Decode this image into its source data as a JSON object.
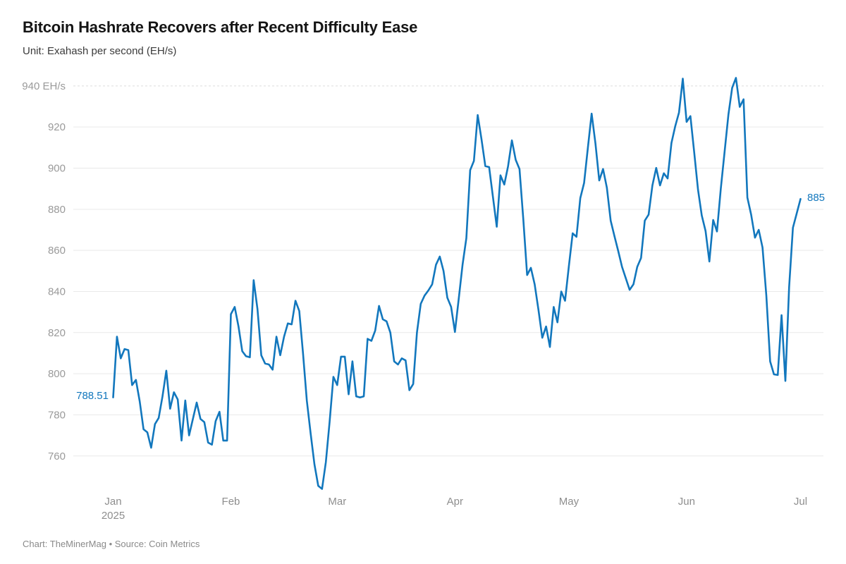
{
  "header": {
    "title": "Bitcoin Hashrate Recovers after Recent Difficulty Ease",
    "subtitle": "Unit: Exahash per second (EH/s)"
  },
  "footer": {
    "credit": "Chart: TheMinerMag • Source: Coin Metrics"
  },
  "chart_data": {
    "type": "line",
    "title": "Bitcoin Hashrate Recovers after Recent Difficulty Ease",
    "unit": "EH/s",
    "frequency": "daily",
    "start_date": "2025-01-01",
    "end_date": "2025-07-01",
    "grid": true,
    "legend": "none",
    "line_color": "#1277bd",
    "axis_label_color": "#9a9a9a",
    "grid_color": "#e9e9e9",
    "top_grid_color": "#dedede",
    "first_point_label": "788.51",
    "last_point_label": "885",
    "ylim": [
      742,
      948
    ],
    "yticks": [
      {
        "value": 760,
        "label": "760"
      },
      {
        "value": 780,
        "label": "780"
      },
      {
        "value": 800,
        "label": "800"
      },
      {
        "value": 820,
        "label": "820"
      },
      {
        "value": 840,
        "label": "840"
      },
      {
        "value": 860,
        "label": "860"
      },
      {
        "value": 880,
        "label": "880"
      },
      {
        "value": 900,
        "label": "900"
      },
      {
        "value": 920,
        "label": "920"
      },
      {
        "value": 940,
        "label": "940 EH/s"
      }
    ],
    "xticks": [
      {
        "label": "Jan",
        "sublabel": "2025",
        "day_index": 0
      },
      {
        "label": "Feb",
        "sublabel": "",
        "day_index": 31
      },
      {
        "label": "Mar",
        "sublabel": "",
        "day_index": 59
      },
      {
        "label": "Apr",
        "sublabel": "",
        "day_index": 90
      },
      {
        "label": "May",
        "sublabel": "",
        "day_index": 120
      },
      {
        "label": "Jun",
        "sublabel": "",
        "day_index": 151
      },
      {
        "label": "Jul",
        "sublabel": "",
        "day_index": 181
      }
    ],
    "series": [
      {
        "name": "Bitcoin hashrate (EH/s)",
        "values": [
          788.51,
          818,
          807.5,
          812,
          811.5,
          794.5,
          797,
          786.5,
          773,
          771.5,
          764,
          775.5,
          778.5,
          789,
          801.5,
          783,
          791,
          787.5,
          767.5,
          787,
          770,
          778,
          786,
          778,
          776.5,
          766.5,
          765.5,
          777,
          781.5,
          767.5,
          767.5,
          829,
          832.5,
          823,
          811,
          808.5,
          808,
          845.5,
          831.5,
          809,
          805,
          804.5,
          802,
          818,
          809,
          818,
          824.5,
          824,
          835.5,
          830.5,
          810,
          787,
          771,
          756,
          745.5,
          744,
          757,
          776.5,
          798.5,
          794.5,
          808.3,
          808.3,
          790,
          806,
          789,
          788.5,
          789,
          817,
          816,
          821,
          833,
          826.5,
          825.5,
          820,
          806,
          804.5,
          807.5,
          806.5,
          792,
          795,
          820,
          834,
          838,
          840.5,
          843.5,
          853,
          857,
          850,
          837,
          832.5,
          820.3,
          836.5,
          853,
          866,
          899,
          903.5,
          925.8,
          914,
          901,
          900.5,
          886,
          871.5,
          896.5,
          892,
          901,
          913.5,
          904,
          899.5,
          875,
          848,
          851.5,
          843.5,
          831,
          817.5,
          823,
          813,
          832.5,
          825,
          840,
          835.5,
          852.3,
          868.3,
          866.6,
          885.4,
          892.8,
          909.7,
          926.5,
          912,
          894,
          899.6,
          890.5,
          874.5,
          867,
          859.7,
          852,
          846.4,
          840.8,
          843.5,
          852,
          856.3,
          874.5,
          877.4,
          891.6,
          900.1,
          891.6,
          897.5,
          895,
          912.2,
          920.3,
          927,
          943.5,
          922.5,
          925.3,
          907.6,
          889.5,
          877,
          869.4,
          854.6,
          874.8,
          869.2,
          890,
          908,
          926,
          939,
          943.9,
          929.8,
          933.5,
          885.7,
          877.3,
          866.2,
          870,
          861.4,
          838,
          806,
          799.7,
          799.4,
          828.5,
          796.5,
          842,
          871,
          878,
          885
        ]
      }
    ]
  }
}
